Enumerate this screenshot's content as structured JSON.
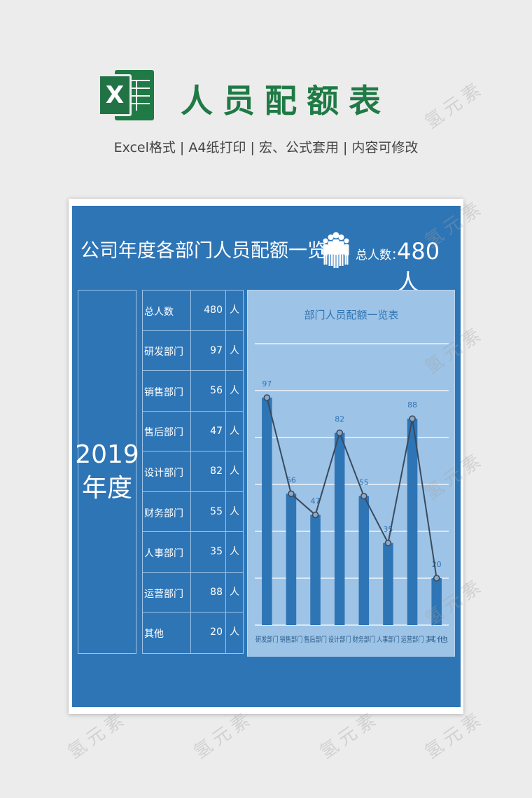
{
  "header": {
    "logo_letter": "X",
    "title": "人员配额表",
    "subtitle": "Excel格式 |  A4纸打印 | 宏、公式套用 | 内容可修改"
  },
  "sheet": {
    "title": "公司年度各部门人员配额一览",
    "total_label": "总人数：",
    "total_value": "480人",
    "year_line1": "2019",
    "year_line2": "年度",
    "rows": [
      {
        "name": "总人数",
        "value": "480",
        "unit": "人"
      },
      {
        "name": "研发部门",
        "value": "97",
        "unit": "人"
      },
      {
        "name": "销售部门",
        "value": "56",
        "unit": "人"
      },
      {
        "name": "售后部门",
        "value": "47",
        "unit": "人"
      },
      {
        "name": "设计部门",
        "value": "82",
        "unit": "人"
      },
      {
        "name": "财务部门",
        "value": "55",
        "unit": "人"
      },
      {
        "name": "人事部门",
        "value": "35",
        "unit": "人"
      },
      {
        "name": "运营部门",
        "value": "88",
        "unit": "人"
      },
      {
        "name": "其他",
        "value": "20",
        "unit": "人"
      }
    ]
  },
  "colors": {
    "brand_green": "#1f7a45",
    "sheet_blue": "#2e75b6",
    "chart_bg": "#9dc3e6",
    "bar": "#2e75b6",
    "line": "#3a4a5e"
  },
  "chart_data": {
    "type": "bar",
    "title": "部门人员配额一览表",
    "categories": [
      "研发部门",
      "销售部门",
      "售后部门",
      "设计部门",
      "财务部门",
      "人事部门",
      "运营部门",
      "其他"
    ],
    "values": [
      97,
      56,
      47,
      82,
      55,
      35,
      88,
      20
    ],
    "overlay_line": true,
    "ylim": [
      0,
      120
    ],
    "grid": true,
    "legend": "none"
  },
  "watermark": "氢元素"
}
